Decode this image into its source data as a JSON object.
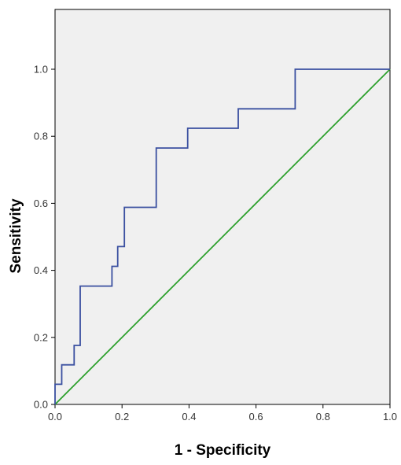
{
  "chart_data": {
    "type": "line",
    "title": "",
    "xlabel": "1 - Specificity",
    "ylabel": "Sensitivity",
    "xlim": [
      0.0,
      1.0
    ],
    "ylim": [
      0.0,
      1.0
    ],
    "x_ticks": [
      "0.0",
      "0.2",
      "0.4",
      "0.6",
      "0.8",
      "1.0"
    ],
    "y_ticks": [
      "0.0",
      "0.2",
      "0.4",
      "0.6",
      "0.8",
      "1.0"
    ],
    "grid": false,
    "background": "#f0f0f0",
    "series": [
      {
        "color": "#3a4fa0",
        "style": "step",
        "points": [
          [
            0.0,
            0.0
          ],
          [
            0.0,
            0.06
          ],
          [
            0.02,
            0.06
          ],
          [
            0.02,
            0.118
          ],
          [
            0.057,
            0.118
          ],
          [
            0.057,
            0.176
          ],
          [
            0.075,
            0.176
          ],
          [
            0.075,
            0.353
          ],
          [
            0.17,
            0.353
          ],
          [
            0.17,
            0.412
          ],
          [
            0.187,
            0.412
          ],
          [
            0.187,
            0.471
          ],
          [
            0.207,
            0.471
          ],
          [
            0.207,
            0.588
          ],
          [
            0.302,
            0.588
          ],
          [
            0.302,
            0.765
          ],
          [
            0.396,
            0.765
          ],
          [
            0.396,
            0.824
          ],
          [
            0.547,
            0.824
          ],
          [
            0.547,
            0.882
          ],
          [
            0.717,
            0.882
          ],
          [
            0.717,
            1.0
          ],
          [
            1.0,
            1.0
          ]
        ]
      },
      {
        "color": "#2ca02c",
        "style": "line",
        "points": [
          [
            0.0,
            0.0
          ],
          [
            1.0,
            1.0
          ]
        ]
      }
    ]
  }
}
